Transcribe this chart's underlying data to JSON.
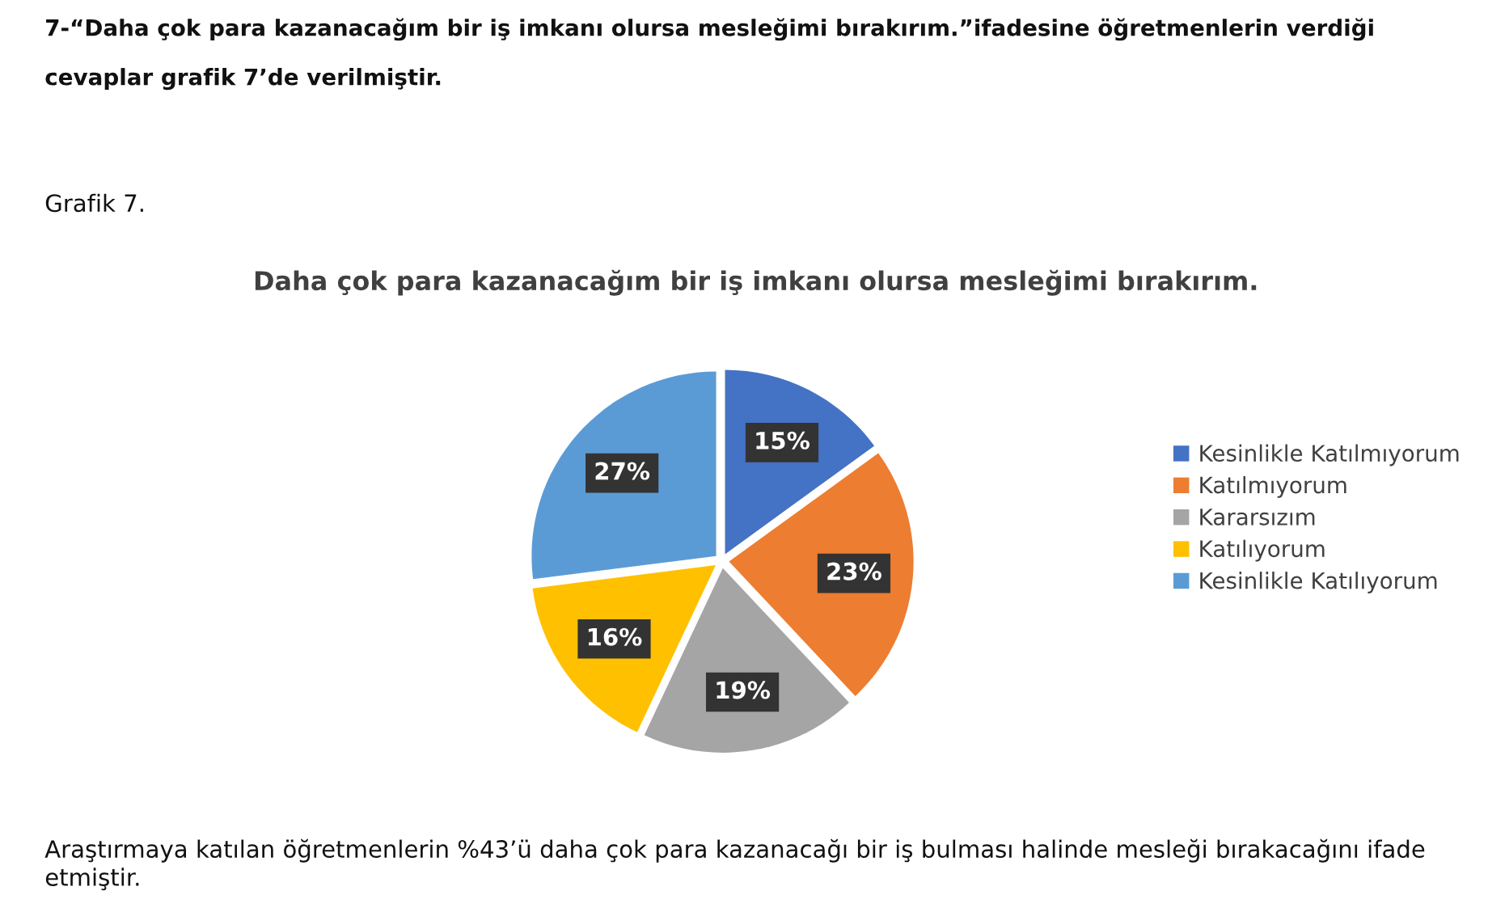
{
  "chart_data": {
    "type": "pie",
    "title": "Daha çok para kazanacağım bir iş imkanı olursa mesleğimi bırakırım.",
    "categories": [
      "Kesinlikle Katılmıyorum",
      "Katılmıyorum",
      "Kararsızım",
      "Katılıyorum",
      "Kesinlikle Katılıyorum"
    ],
    "values": [
      15,
      23,
      19,
      16,
      27
    ],
    "value_labels": [
      "15%",
      "23%",
      "19%",
      "16%",
      "27%"
    ],
    "colors": [
      "#4472c4",
      "#ed7d31",
      "#a5a5a5",
      "#ffc000",
      "#5b9bd5"
    ],
    "legend": "right",
    "annotations": [
      "7-“Daha çok para kazanacağım bir iş imkanı olursa mesleğimi bırakırım.”ifadesine öğretmenlerin verdiği cevaplar grafik 7’de verilmiştir.",
      "Grafik 7.",
      "Araştırmaya katılan öğretmenlerin %43’ü daha çok para kazanacağı bir iş bulması halinde mesleği bırakacağını ifade etmiştir."
    ]
  }
}
